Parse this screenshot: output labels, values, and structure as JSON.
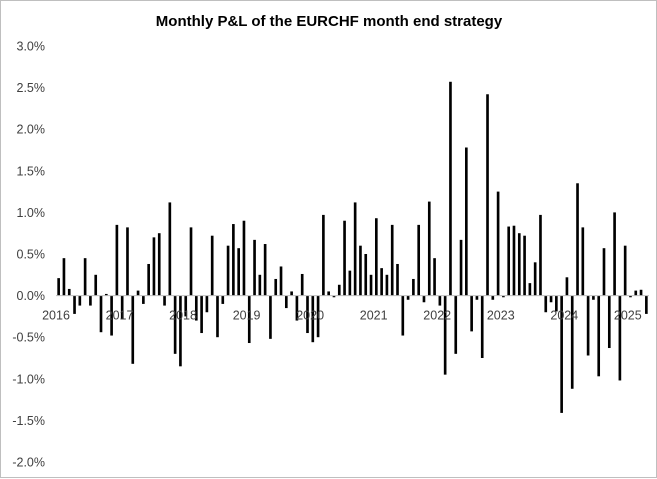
{
  "chart_data": {
    "type": "bar",
    "title": "Monthly P&L of the EURCHF month end strategy",
    "xlabel": "",
    "ylabel": "",
    "ylim": [
      -0.02,
      0.03
    ],
    "y_ticks": [
      0.03,
      0.025,
      0.02,
      0.015,
      0.01,
      0.005,
      0.0,
      -0.005,
      -0.01,
      -0.015,
      -0.02
    ],
    "y_tick_labels": [
      "3.0%",
      "2.5%",
      "2.0%",
      "1.5%",
      "1.0%",
      "0.5%",
      "0.0%",
      "-0.5%",
      "-1.0%",
      "-1.5%",
      "-2.0%"
    ],
    "x_tick_labels": [
      "2016",
      "2017",
      "2018",
      "2019",
      "2020",
      "2021",
      "2022",
      "2023",
      "2024",
      "2025"
    ],
    "x_tick_month_index": [
      0,
      12,
      24,
      36,
      48,
      60,
      72,
      84,
      96,
      108
    ],
    "months_count": 112,
    "grid": false,
    "legend": "none",
    "bar_color": "#000000",
    "axis_color": "#bfbfbf",
    "series": [
      {
        "name": "Monthly P&L",
        "values": [
          0.0021,
          0.0045,
          0.0008,
          -0.0022,
          -0.0012,
          0.0045,
          -0.0012,
          0.0025,
          -0.0044,
          0.0002,
          -0.0048,
          0.0085,
          -0.0028,
          0.0082,
          -0.0082,
          0.0006,
          -0.001,
          0.0038,
          0.007,
          0.0075,
          -0.0012,
          0.0112,
          -0.007,
          -0.0085,
          -0.0025,
          0.0082,
          -0.003,
          -0.0045,
          -0.002,
          0.0072,
          -0.005,
          -0.001,
          0.006,
          0.0086,
          0.0057,
          0.009,
          -0.0057,
          0.0067,
          0.0025,
          0.0062,
          -0.0052,
          0.002,
          0.0035,
          -0.0015,
          0.0005,
          -0.003,
          0.0026,
          -0.0045,
          -0.0056,
          -0.005,
          0.0097,
          0.0005,
          -0.0002,
          0.0013,
          0.009,
          0.003,
          0.0112,
          0.006,
          0.005,
          0.0025,
          0.0093,
          0.0033,
          0.0025,
          0.0085,
          0.0038,
          -0.0048,
          -0.0005,
          0.002,
          0.0085,
          -0.0008,
          0.0113,
          0.0045,
          -0.0012,
          -0.0095,
          0.0257,
          -0.007,
          0.0067,
          0.0178,
          -0.0043,
          -0.0005,
          -0.0075,
          0.0242,
          -0.0005,
          0.0125,
          -0.0002,
          0.0083,
          0.0084,
          0.0075,
          0.0072,
          0.0015,
          0.004,
          0.0097,
          -0.002,
          -0.0008,
          -0.0019,
          -0.0141,
          0.0022,
          -0.0112,
          0.0135,
          0.0082,
          -0.0072,
          -0.0005,
          -0.0097,
          0.0057,
          -0.0063,
          0.01,
          -0.0102,
          0.006,
          -0.0002,
          0.0006,
          0.0007,
          -0.0022
        ]
      }
    ]
  }
}
